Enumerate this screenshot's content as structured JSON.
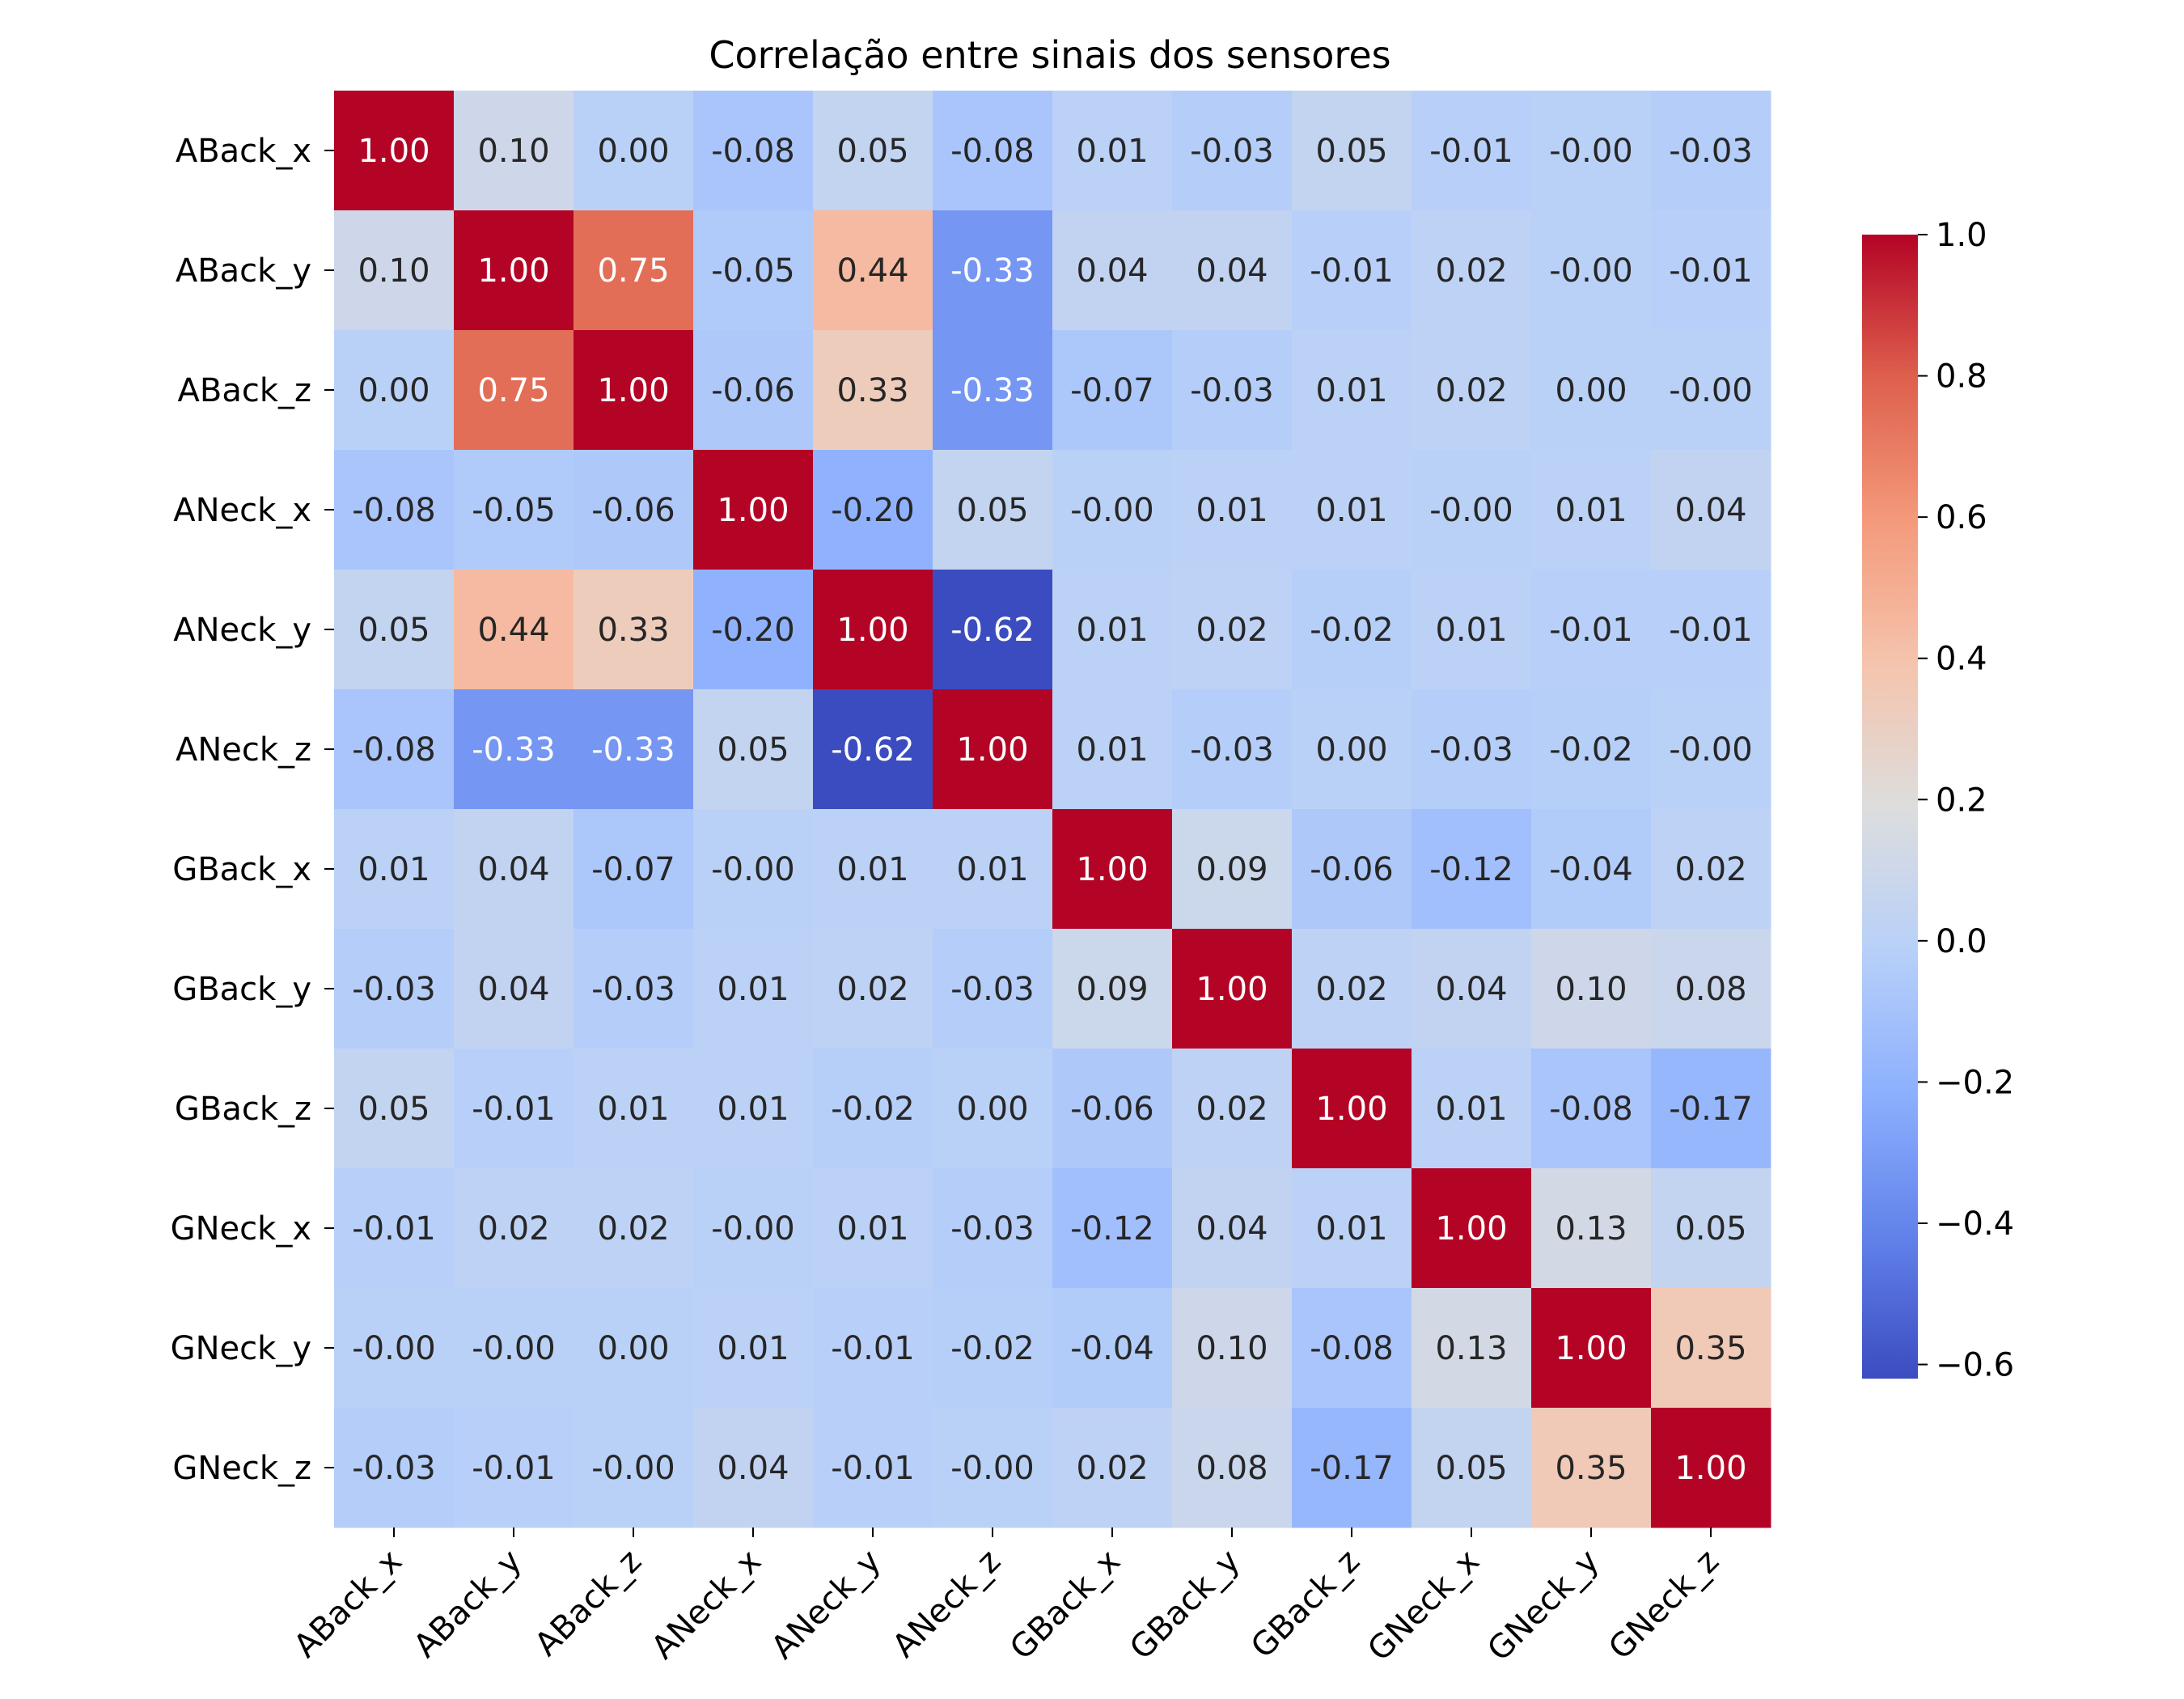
{
  "chart_data": {
    "type": "heatmap",
    "title": "Correlação entre sinais dos sensores",
    "xlabel": "",
    "ylabel": "",
    "labels": [
      "ABack_x",
      "ABack_y",
      "ABack_z",
      "ANeck_x",
      "ANeck_y",
      "ANeck_z",
      "GBack_x",
      "GBack_y",
      "GBack_z",
      "GNeck_x",
      "GNeck_y",
      "GNeck_z"
    ],
    "matrix": [
      [
        "1.00",
        "0.10",
        "0.00",
        "-0.08",
        "0.05",
        "-0.08",
        "0.01",
        "-0.03",
        "0.05",
        "-0.01",
        "-0.00",
        "-0.03"
      ],
      [
        "0.10",
        "1.00",
        "0.75",
        "-0.05",
        "0.44",
        "-0.33",
        "0.04",
        "0.04",
        "-0.01",
        "0.02",
        "-0.00",
        "-0.01"
      ],
      [
        "0.00",
        "0.75",
        "1.00",
        "-0.06",
        "0.33",
        "-0.33",
        "-0.07",
        "-0.03",
        "0.01",
        "0.02",
        "0.00",
        "-0.00"
      ],
      [
        "-0.08",
        "-0.05",
        "-0.06",
        "1.00",
        "-0.20",
        "0.05",
        "-0.00",
        "0.01",
        "0.01",
        "-0.00",
        "0.01",
        "0.04"
      ],
      [
        "0.05",
        "0.44",
        "0.33",
        "-0.20",
        "1.00",
        "-0.62",
        "0.01",
        "0.02",
        "-0.02",
        "0.01",
        "-0.01",
        "-0.01"
      ],
      [
        "-0.08",
        "-0.33",
        "-0.33",
        "0.05",
        "-0.62",
        "1.00",
        "0.01",
        "-0.03",
        "0.00",
        "-0.03",
        "-0.02",
        "-0.00"
      ],
      [
        "0.01",
        "0.04",
        "-0.07",
        "-0.00",
        "0.01",
        "0.01",
        "1.00",
        "0.09",
        "-0.06",
        "-0.12",
        "-0.04",
        "0.02"
      ],
      [
        "-0.03",
        "0.04",
        "-0.03",
        "0.01",
        "0.02",
        "-0.03",
        "0.09",
        "1.00",
        "0.02",
        "0.04",
        "0.10",
        "0.08"
      ],
      [
        "0.05",
        "-0.01",
        "0.01",
        "0.01",
        "-0.02",
        "0.00",
        "-0.06",
        "0.02",
        "1.00",
        "0.01",
        "-0.08",
        "-0.17"
      ],
      [
        "-0.01",
        "0.02",
        "0.02",
        "-0.00",
        "0.01",
        "-0.03",
        "-0.12",
        "0.04",
        "0.01",
        "1.00",
        "0.13",
        "0.05"
      ],
      [
        "-0.00",
        "-0.00",
        "0.00",
        "0.01",
        "-0.01",
        "-0.02",
        "-0.04",
        "0.10",
        "-0.08",
        "0.13",
        "1.00",
        "0.35"
      ],
      [
        "-0.03",
        "-0.01",
        "-0.00",
        "0.04",
        "-0.01",
        "-0.00",
        "0.02",
        "0.08",
        "-0.17",
        "0.05",
        "0.35",
        "1.00"
      ]
    ],
    "colormap": "coolwarm",
    "vmin": -0.62,
    "vmax": 1.0,
    "colorbar": {
      "ticks": [
        1.0,
        0.8,
        0.6,
        0.4,
        0.2,
        0.0,
        -0.2,
        -0.4,
        -0.6
      ],
      "tick_labels": [
        "1.0",
        "0.8",
        "0.6",
        "0.4",
        "0.2",
        "0.0",
        "−0.2",
        "−0.4",
        "−0.6"
      ],
      "placement": "right"
    },
    "grid": false
  }
}
